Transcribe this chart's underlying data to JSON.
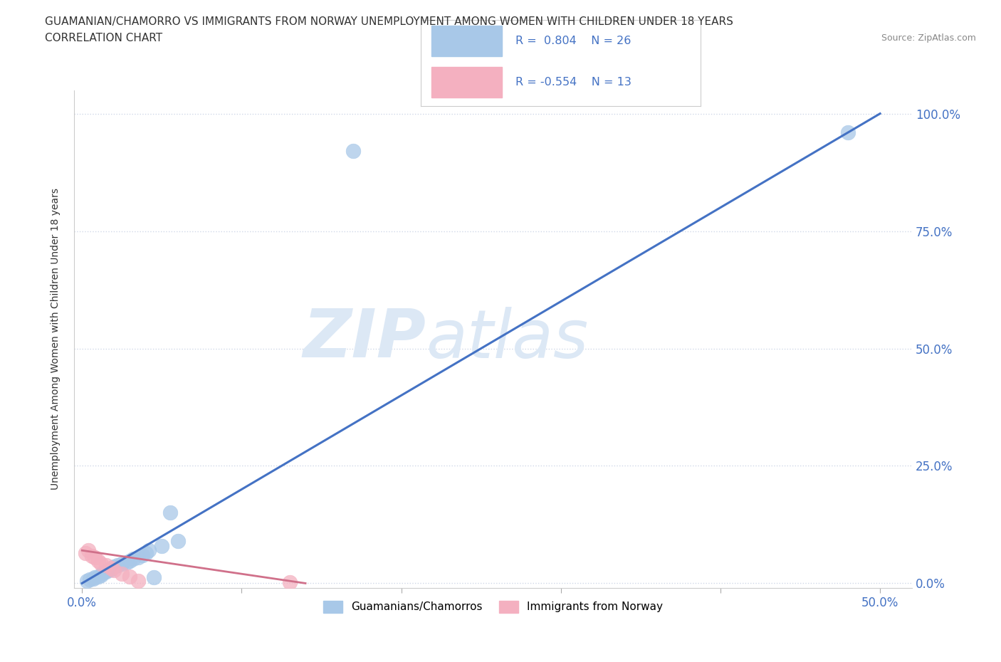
{
  "title_line1": "GUAMANIAN/CHAMORRO VS IMMIGRANTS FROM NORWAY UNEMPLOYMENT AMONG WOMEN WITH CHILDREN UNDER 18 YEARS",
  "title_line2": "CORRELATION CHART",
  "source_text": "Source: ZipAtlas.com",
  "ylabel": "Unemployment Among Women with Children Under 18 years",
  "xlim": [
    -0.005,
    0.52
  ],
  "ylim": [
    -0.01,
    1.05
  ],
  "xticks": [
    0.0,
    0.1,
    0.2,
    0.3,
    0.4,
    0.5
  ],
  "xtick_labels_show": [
    "0.0%",
    "",
    "",
    "",
    "",
    "50.0%"
  ],
  "yticks": [
    0.0,
    0.25,
    0.5,
    0.75,
    1.0
  ],
  "ytick_labels": [
    "0.0%",
    "25.0%",
    "50.0%",
    "75.0%",
    "100.0%"
  ],
  "blue_R": 0.804,
  "blue_N": 26,
  "pink_R": -0.554,
  "pink_N": 13,
  "blue_color": "#a8c8e8",
  "pink_color": "#f4b0c0",
  "blue_line_color": "#4472c4",
  "pink_line_color": "#d0708a",
  "label_color": "#4472c4",
  "watermark_color": "#dce8f5",
  "background_color": "#ffffff",
  "grid_color": "#d0d8e8",
  "blue_scatter_x": [
    0.003,
    0.005,
    0.007,
    0.008,
    0.01,
    0.012,
    0.013,
    0.015,
    0.016,
    0.018,
    0.02,
    0.022,
    0.025,
    0.028,
    0.03,
    0.032,
    0.035,
    0.038,
    0.04,
    0.042,
    0.045,
    0.05,
    0.055,
    0.06,
    0.17,
    0.48
  ],
  "blue_scatter_y": [
    0.005,
    0.008,
    0.01,
    0.012,
    0.015,
    0.018,
    0.022,
    0.025,
    0.028,
    0.03,
    0.035,
    0.038,
    0.042,
    0.045,
    0.048,
    0.052,
    0.055,
    0.06,
    0.065,
    0.07,
    0.012,
    0.08,
    0.15,
    0.09,
    0.92,
    0.96
  ],
  "pink_scatter_x": [
    0.002,
    0.004,
    0.006,
    0.008,
    0.01,
    0.012,
    0.015,
    0.018,
    0.02,
    0.025,
    0.03,
    0.035,
    0.13
  ],
  "pink_scatter_y": [
    0.065,
    0.07,
    0.058,
    0.055,
    0.048,
    0.042,
    0.038,
    0.032,
    0.028,
    0.02,
    0.015,
    0.005,
    0.002
  ],
  "blue_line_x": [
    0.0,
    0.5
  ],
  "blue_line_y": [
    0.0,
    1.0
  ],
  "pink_line_x": [
    0.0,
    0.14
  ],
  "pink_line_y": [
    0.07,
    0.0
  ]
}
